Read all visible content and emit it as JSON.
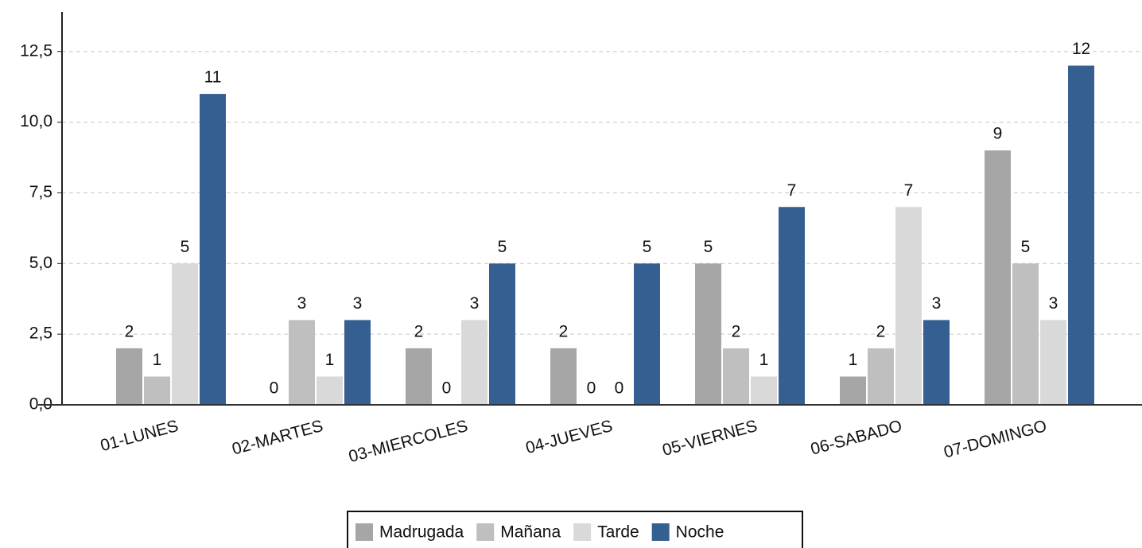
{
  "chart_data": {
    "type": "bar",
    "categories": [
      "01-LUNES",
      "02-MARTES",
      "03-MIERCOLES",
      "04-JUEVES",
      "05-VIERNES",
      "06-SABADO",
      "07-DOMINGO"
    ],
    "series": [
      {
        "name": "Madrugada",
        "color": "#a6a6a6",
        "values": [
          2,
          0,
          2,
          2,
          5,
          1,
          9
        ]
      },
      {
        "name": "Mañana",
        "color": "#bfbfbf",
        "values": [
          1,
          3,
          0,
          0,
          2,
          2,
          5
        ]
      },
      {
        "name": "Tarde",
        "color": "#d9d9d9",
        "values": [
          5,
          1,
          3,
          0,
          1,
          7,
          3
        ]
      },
      {
        "name": "Noche",
        "color": "#365f91",
        "values": [
          11,
          3,
          5,
          5,
          7,
          3,
          12
        ]
      }
    ],
    "ylim": [
      0,
      13.9
    ],
    "yticks": [
      {
        "value": 0,
        "label": "0,0"
      },
      {
        "value": 2.5,
        "label": "2,5"
      },
      {
        "value": 5,
        "label": "5,0"
      },
      {
        "value": 7.5,
        "label": "7,5"
      },
      {
        "value": 10,
        "label": "10,0"
      },
      {
        "value": 12.5,
        "label": "12,5"
      }
    ],
    "grid": true,
    "legend": "bottom"
  }
}
